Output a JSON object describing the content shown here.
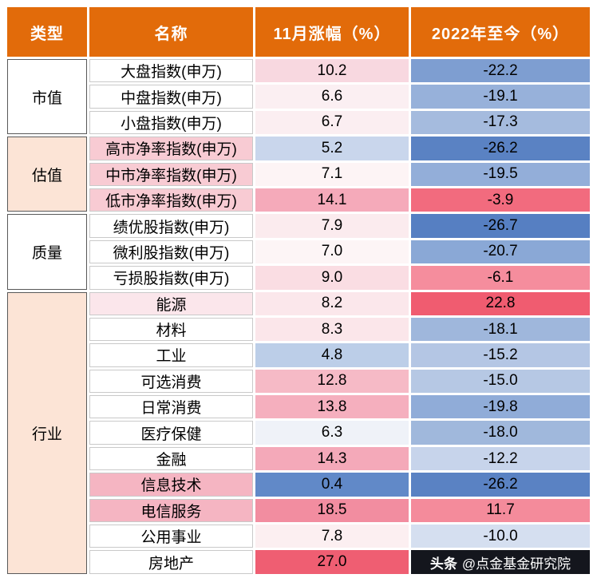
{
  "header": {
    "bg": "#E26B0A",
    "text_color": "#FFFFFF",
    "columns": [
      "类型",
      "名称",
      "11月涨幅（%）",
      "2022年至今（%）"
    ]
  },
  "groups": [
    {
      "id": "market-cap",
      "label": "市值",
      "bg": "#FFFFFF",
      "span": 3
    },
    {
      "id": "valuation",
      "label": "估值",
      "bg": "#FCE4D6",
      "span": 3
    },
    {
      "id": "quality",
      "label": "质量",
      "bg": "#FFFFFF",
      "span": 3
    },
    {
      "id": "industry",
      "label": "行业",
      "bg": "#FCE4D6",
      "span": 11
    }
  ],
  "rows": [
    {
      "name": "大盘指数(申万)",
      "name_bg": "#FFFFFF",
      "nov": "10.2",
      "nov_bg": "#F8D8E0",
      "ytd": "-22.2",
      "ytd_bg": "#7E9ED1"
    },
    {
      "name": "中盘指数(申万)",
      "name_bg": "#FFFFFF",
      "nov": "6.6",
      "nov_bg": "#FBEFF2",
      "ytd": "-19.1",
      "ytd_bg": "#97B1DA"
    },
    {
      "name": "小盘指数(申万)",
      "name_bg": "#FFFFFF",
      "nov": "6.7",
      "nov_bg": "#FBEEF1",
      "ytd": "-17.3",
      "ytd_bg": "#A5BBDE"
    },
    {
      "name": "高市净率指数(申万)",
      "name_bg": "#F8CBD3",
      "nov": "5.2",
      "nov_bg": "#C9D6EC",
      "ytd": "-26.2",
      "ytd_bg": "#5A82C3"
    },
    {
      "name": "中市净率指数(申万)",
      "name_bg": "#F8CBD3",
      "nov": "7.1",
      "nov_bg": "#FDF4F5",
      "ytd": "-19.5",
      "ytd_bg": "#93AED9"
    },
    {
      "name": "低市净率指数(申万)",
      "name_bg": "#F8CBD3",
      "nov": "14.1",
      "nov_bg": "#F5AABA",
      "ytd": "-3.9",
      "ytd_bg": "#F26B7E"
    },
    {
      "name": "绩优股指数(申万)",
      "name_bg": "#FFFFFF",
      "nov": "7.9",
      "nov_bg": "#FBEBEE",
      "ytd": "-26.7",
      "ytd_bg": "#567FC2"
    },
    {
      "name": "微利股指数(申万)",
      "name_bg": "#FFFFFF",
      "nov": "7.0",
      "nov_bg": "#FDF5F6",
      "ytd": "-20.7",
      "ytd_bg": "#8AA8D6"
    },
    {
      "name": "亏损股指数(申万)",
      "name_bg": "#FFFFFF",
      "nov": "9.0",
      "nov_bg": "#FADDE3",
      "ytd": "-6.1",
      "ytd_bg": "#F58D9D"
    },
    {
      "name": "能源",
      "name_bg": "#FBE6EB",
      "nov": "8.2",
      "nov_bg": "#FBE7EB",
      "ytd": "22.8",
      "ytd_bg": "#F05C70"
    },
    {
      "name": "材料",
      "name_bg": "#FFFFFF",
      "nov": "8.3",
      "nov_bg": "#FBE6EA",
      "ytd": "-18.1",
      "ytd_bg": "#9FB7DC"
    },
    {
      "name": "工业",
      "name_bg": "#FFFFFF",
      "nov": "4.8",
      "nov_bg": "#BCCEE8",
      "ytd": "-15.2",
      "ytd_bg": "#B4C6E4"
    },
    {
      "name": "可选消费",
      "name_bg": "#FFFFFF",
      "nov": "12.8",
      "nov_bg": "#F6BAC6",
      "ytd": "-15.0",
      "ytd_bg": "#B6C8E4"
    },
    {
      "name": "日常消费",
      "name_bg": "#FFFFFF",
      "nov": "13.8",
      "nov_bg": "#F5AFBE",
      "ytd": "-19.8",
      "ytd_bg": "#90ACD8"
    },
    {
      "name": "医疗保健",
      "name_bg": "#FFFFFF",
      "nov": "6.3",
      "nov_bg": "#EFF2F8",
      "ytd": "-18.0",
      "ytd_bg": "#A0B8DC"
    },
    {
      "name": "金融",
      "name_bg": "#FFFFFF",
      "nov": "14.3",
      "nov_bg": "#F4A9B9",
      "ytd": "-12.2",
      "ytd_bg": "#C7D4EB"
    },
    {
      "name": "信息技术",
      "name_bg": "#F5B5C2",
      "nov": "0.4",
      "nov_bg": "#6189C8",
      "ytd": "-26.2",
      "ytd_bg": "#5A82C3"
    },
    {
      "name": "电信服务",
      "name_bg": "#F5B5C2",
      "nov": "18.5",
      "nov_bg": "#F28DA0",
      "ytd": "11.7",
      "ytd_bg": "#F48B9B"
    },
    {
      "name": "公用事业",
      "name_bg": "#FFFFFF",
      "nov": "7.8",
      "nov_bg": "#FCEFF1",
      "ytd": "-10.0",
      "ytd_bg": "#D5DFF0"
    },
    {
      "name": "房地产",
      "name_bg": "#FFFFFF",
      "nov": "27.0",
      "nov_bg": "#EF5E72",
      "ytd": "",
      "ytd_bg": "#14161D",
      "watermark": true
    }
  ],
  "watermark": {
    "logo": "头条",
    "account": "@点金基金研究院",
    "bg": "#14161D",
    "text_color": "#FFFFFF"
  },
  "chart_data": {
    "type": "table",
    "title": "",
    "columns": [
      "类型",
      "名称",
      "11月涨幅（%）",
      "2022年至今（%）"
    ],
    "rows": [
      [
        "市值",
        "大盘指数(申万)",
        10.2,
        -22.2
      ],
      [
        "市值",
        "中盘指数(申万)",
        6.6,
        -19.1
      ],
      [
        "市值",
        "小盘指数(申万)",
        6.7,
        -17.3
      ],
      [
        "估值",
        "高市净率指数(申万)",
        5.2,
        -26.2
      ],
      [
        "估值",
        "中市净率指数(申万)",
        7.1,
        -19.5
      ],
      [
        "估值",
        "低市净率指数(申万)",
        14.1,
        -3.9
      ],
      [
        "质量",
        "绩优股指数(申万)",
        7.9,
        -26.7
      ],
      [
        "质量",
        "微利股指数(申万)",
        7.0,
        -20.7
      ],
      [
        "质量",
        "亏损股指数(申万)",
        9.0,
        -6.1
      ],
      [
        "行业",
        "能源",
        8.2,
        22.8
      ],
      [
        "行业",
        "材料",
        8.3,
        -18.1
      ],
      [
        "行业",
        "工业",
        4.8,
        -15.2
      ],
      [
        "行业",
        "可选消费",
        12.8,
        -15.0
      ],
      [
        "行业",
        "日常消费",
        13.8,
        -19.8
      ],
      [
        "行业",
        "医疗保健",
        6.3,
        -18.0
      ],
      [
        "行业",
        "金融",
        14.3,
        -12.2
      ],
      [
        "行业",
        "信息技术",
        0.4,
        -26.2
      ],
      [
        "行业",
        "电信服务",
        18.5,
        11.7
      ],
      [
        "行业",
        "公用事业",
        7.8,
        -10.0
      ],
      [
        "行业",
        "房地产",
        27.0,
        null
      ]
    ],
    "notes": "heatmap-colored table; last cell hidden by watermark"
  }
}
